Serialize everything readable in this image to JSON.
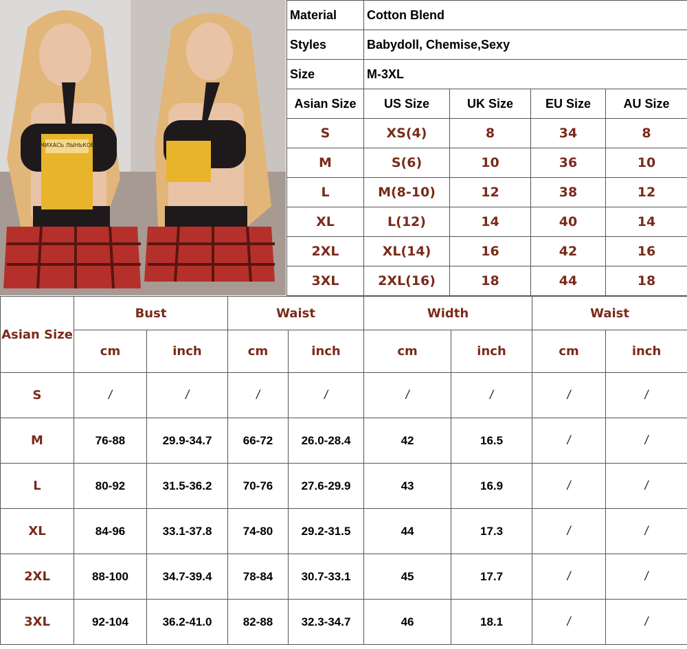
{
  "specs": [
    {
      "label": "Material",
      "value": "Cotton Blend"
    },
    {
      "label": "Styles",
      "value": "Babydoll, Chemise,Sexy"
    },
    {
      "label": "Size",
      "value": "M-3XL"
    }
  ],
  "size_conversion": {
    "headers": [
      "Asian Size",
      "US Size",
      "UK Size",
      "EU Size",
      "AU Size"
    ],
    "rows": [
      [
        "S",
        "XS(4)",
        "8",
        "34",
        "8"
      ],
      [
        "M",
        "S(6)",
        "10",
        "36",
        "10"
      ],
      [
        "L",
        "M(8-10)",
        "12",
        "38",
        "12"
      ],
      [
        "XL",
        "L(12)",
        "14",
        "40",
        "14"
      ],
      [
        "2XL",
        "XL(14)",
        "16",
        "42",
        "16"
      ],
      [
        "3XL",
        "2XL(16)",
        "18",
        "44",
        "18"
      ]
    ]
  },
  "measurements": {
    "size_header": "Asian Size",
    "groups": [
      "Bust",
      "Waist",
      "Width",
      "Waist"
    ],
    "units": [
      "cm",
      "inch",
      "cm",
      "inch",
      "cm",
      "inch",
      "cm",
      "inch"
    ],
    "rows": [
      [
        "S",
        "/",
        "/",
        "/",
        "/",
        "/",
        "/",
        "/",
        "/"
      ],
      [
        "M",
        "76-88",
        "29.9-34.7",
        "66-72",
        "26.0-28.4",
        "42",
        "16.5",
        "/",
        "/"
      ],
      [
        "L",
        "80-92",
        "31.5-36.2",
        "70-76",
        "27.6-29.9",
        "43",
        "16.9",
        "/",
        "/"
      ],
      [
        "XL",
        "84-96",
        "33.1-37.8",
        "74-80",
        "29.2-31.5",
        "44",
        "17.3",
        "/",
        "/"
      ],
      [
        "2XL",
        "88-100",
        "34.7-39.4",
        "78-84",
        "30.7-33.1",
        "45",
        "17.7",
        "/",
        "/"
      ],
      [
        "3XL",
        "92-104",
        "36.2-41.0",
        "82-88",
        "32.3-34.7",
        "46",
        "18.1",
        "/",
        "/"
      ]
    ]
  },
  "photo": {
    "book_text": "МИХАСЬ ЛЫНЬКОВ"
  }
}
